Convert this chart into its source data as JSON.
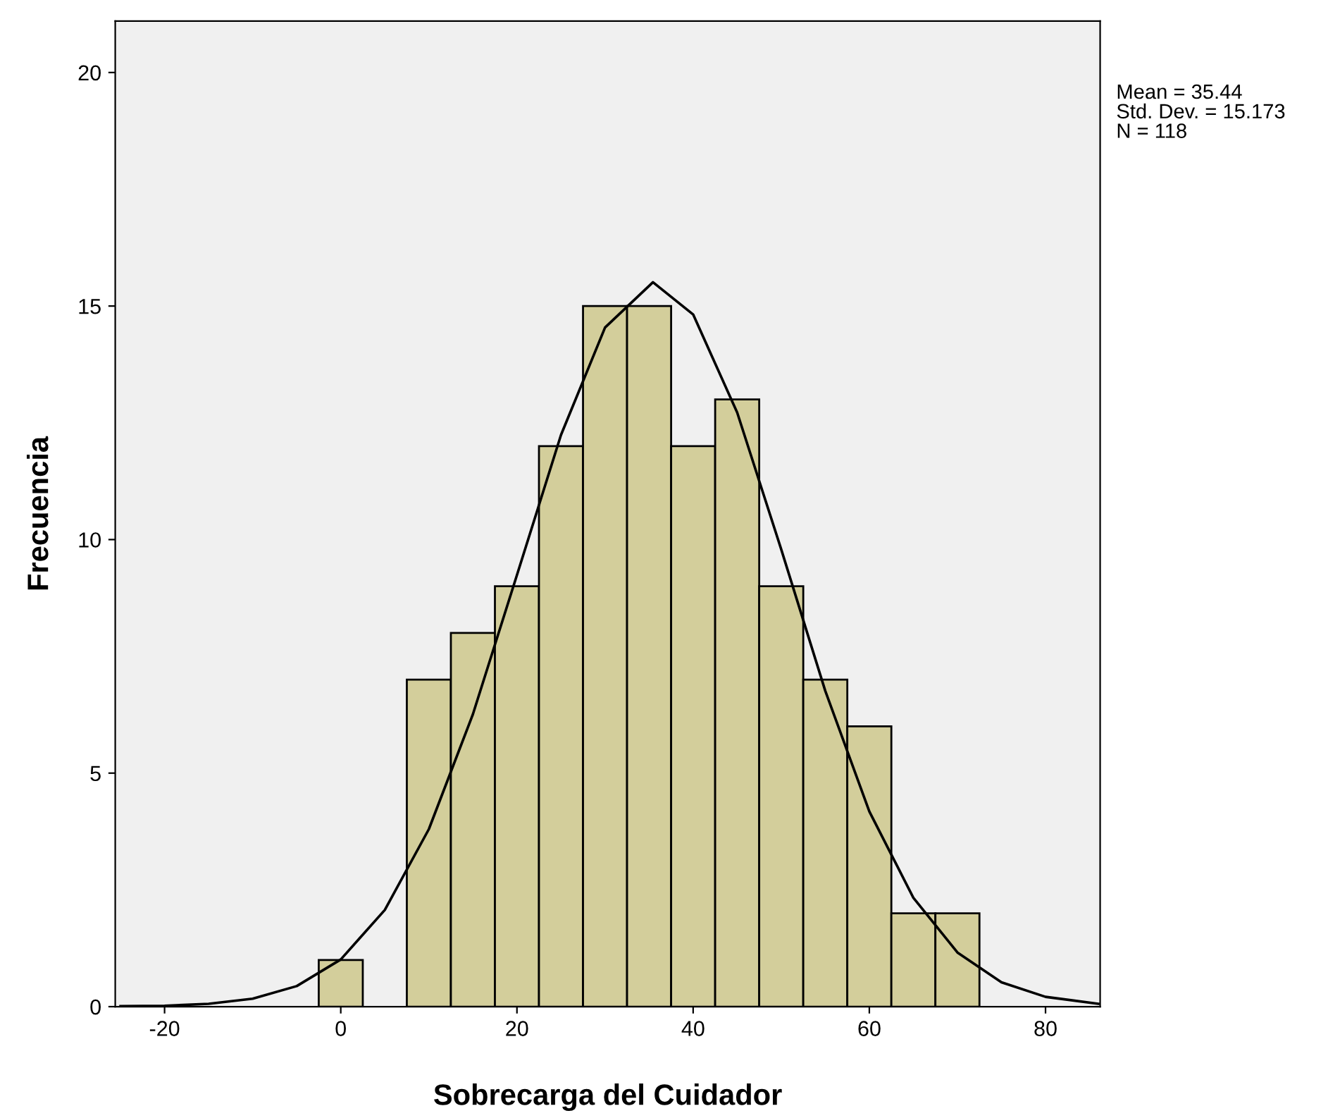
{
  "chart_data": {
    "type": "histogram",
    "xlabel": "Sobrecarga del Cuidador",
    "ylabel": "Frecuencia",
    "annotations": [
      "Mean = 35.44",
      "Std. Dev. = 15.173",
      "N = 118"
    ],
    "series": [
      {
        "color": "#d3ce9b",
        "bins": [
          -2.5,
          2.5,
          7.5,
          12.5,
          17.5,
          22.5,
          27.5,
          32.5,
          37.5,
          42.5,
          47.5,
          52.5,
          57.5,
          62.5,
          67.5,
          72.5
        ],
        "values": [
          1,
          0,
          7,
          8,
          9,
          12,
          15,
          15,
          12,
          13,
          9,
          7,
          6,
          2,
          2
        ]
      },
      {
        "type": "line",
        "color": "#000000",
        "x": [
          -25,
          -20,
          -15,
          -10,
          -5,
          0,
          5,
          10,
          15,
          20,
          25,
          30,
          35.44,
          40,
          45,
          50,
          55,
          60,
          65,
          70,
          75,
          80,
          86
        ],
        "values": [
          0.01,
          0.02,
          0.06,
          0.17,
          0.44,
          1.01,
          2.07,
          3.8,
          6.26,
          9.24,
          12.24,
          14.54,
          15.51,
          14.82,
          12.72,
          9.79,
          6.76,
          4.18,
          2.33,
          1.16,
          0.52,
          0.21,
          0.06
        ]
      }
    ],
    "xlim": [
      -25.6,
      86.2
    ],
    "ylim": [
      0,
      21.1
    ],
    "xticks": [
      -20,
      0,
      20,
      40,
      60,
      80
    ],
    "yticks": [
      0,
      5,
      10,
      15,
      20
    ],
    "grid": false,
    "legend": false
  }
}
